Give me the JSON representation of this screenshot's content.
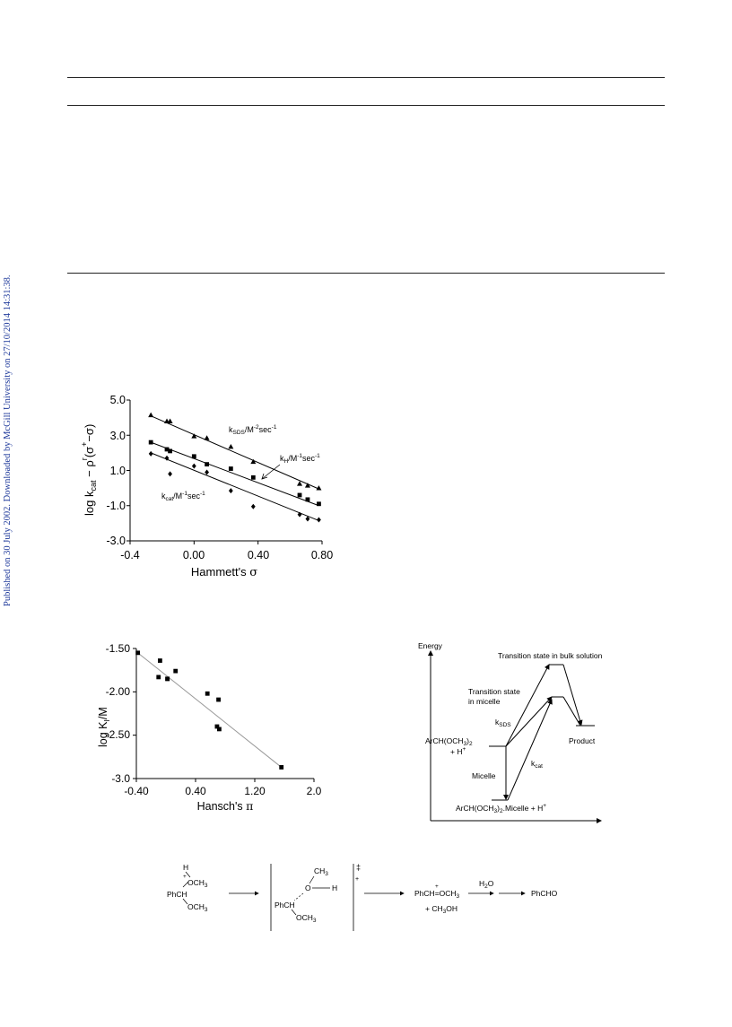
{
  "side_note": "Published on 30 July 2002. Downloaded by McGill University on 27/10/2014 14:31:38.",
  "fig_hammett": {
    "y_ticks": [
      "5.0",
      "3.0",
      "1.0",
      "-1.0",
      "-3.0"
    ],
    "x_ticks": [
      "-0.4",
      "0.00",
      "0.40",
      "0.80"
    ],
    "xlabel_main": "Hammett's",
    "xlabel_symbol": "σ",
    "ylabel_log": "log k",
    "ylabel_cat": "cat",
    "ylabel_rest": "− ρ",
    "ylabel_r": "r",
    "ylabel_sigma_expr": "(σ",
    "ylabel_plus": "+",
    "ylabel_end": "−σ)",
    "label_ksds_k": "k",
    "label_ksds_sub": "SDS",
    "label_ksds_unit": "/M",
    "label_ksds_exp": "-2",
    "label_ksds_sec": "sec",
    "label_ksds_exp2": "-1",
    "label_kh_k": "k",
    "label_kh_sub": "H",
    "label_kh_unit": "/M",
    "label_kh_exp": "-1",
    "label_kh_sec": "sec",
    "label_kh_exp2": "-1",
    "label_kcat_k": "k",
    "label_kcat_sub": "cat",
    "label_kcat_unit": "/M",
    "label_kcat_exp": "-1",
    "label_kcat_sec": "sec",
    "label_kcat_exp2": "-1"
  },
  "fig_hansch": {
    "y_ticks": [
      "-1.50",
      "-2.00",
      "-2.50",
      "-3.0"
    ],
    "x_ticks": [
      "-0.40",
      "0.40",
      "1.20",
      "2.0"
    ],
    "xlabel_main": "Hansch's",
    "xlabel_symbol": "π",
    "ylabel": "log K",
    "ylabel_sub": "I",
    "ylabel_end": "/M"
  },
  "fig_energy": {
    "axis_label": "Energy",
    "ts_bulk": "Transition state in bulk solution",
    "ts_micelle_1": "Transition state",
    "ts_micelle_2": "in micelle",
    "ksds_k": "k",
    "ksds_sub": "SDS",
    "reactant": "ArCH(OCH",
    "reactant_sub": "3",
    "reactant_end": ")",
    "reactant_sub2": "2",
    "reactant_plus": "+ H",
    "reactant_plus_sup": "+",
    "product": "Product",
    "kcat_k": "k",
    "kcat_sub": "cat",
    "micelle": "Micelle",
    "complex": "ArCH(OCH",
    "complex_sub": "3",
    "complex_end": ")",
    "complex_sub2": "2",
    "complex_rest": ".Micelle   + H",
    "complex_sup": "+"
  },
  "scheme": {
    "h": "H",
    "och3_top": "OCH",
    "och3_sub": "3",
    "phch": "PhCH",
    "och3_bottom": "OCH",
    "plus": "+",
    "ch3": "CH",
    "ch3_sub": "3",
    "o": "O",
    "h2": "H",
    "phch2": "PhCH",
    "och3_ts": "OCH",
    "dagger": "‡",
    "ts_plus": "+",
    "ox_carbenium": "PhCH",
    "ox_eq": "=",
    "ox_och3": "OCH",
    "ox_plus": "+",
    "ch3oh": "+ CH",
    "ch3oh_sub": "3",
    "ch3oh_end": "OH",
    "h2o": "H",
    "h2o_sub": "2",
    "h2o_end": "O",
    "phcho": "PhCHO"
  },
  "chart_data": [
    {
      "type": "scatter",
      "xlabel": "Hammett's σ",
      "ylabel": "log kcat − ρr(σ+ − σ)",
      "xlim": [
        -0.4,
        0.8
      ],
      "ylim": [
        -3.0,
        5.0
      ],
      "series": [
        {
          "name": "kSDS/M-2sec-1",
          "marker": "triangle",
          "x": [
            -0.27,
            -0.17,
            -0.15,
            0.0,
            0.08,
            0.23,
            0.37,
            0.66,
            0.71,
            0.78
          ],
          "y": [
            4.15,
            3.8,
            3.8,
            2.95,
            2.85,
            2.35,
            1.5,
            0.25,
            0.15,
            0.0
          ],
          "fit": [
            [
              -0.27,
              4.1
            ],
            [
              0.78,
              -0.05
            ]
          ]
        },
        {
          "name": "kH/M-1sec-1",
          "marker": "square",
          "x": [
            -0.27,
            -0.17,
            -0.15,
            0.0,
            0.08,
            0.23,
            0.37,
            0.66,
            0.71,
            0.78
          ],
          "y": [
            2.6,
            2.2,
            2.1,
            1.8,
            1.35,
            1.1,
            0.6,
            -0.4,
            -0.65,
            -0.9
          ],
          "fit": [
            [
              -0.27,
              2.6
            ],
            [
              0.78,
              -1.0
            ]
          ]
        },
        {
          "name": "kcat/M-1sec-1",
          "marker": "diamond",
          "x": [
            -0.27,
            -0.17,
            -0.15,
            0.0,
            0.08,
            0.23,
            0.37,
            0.66,
            0.71,
            0.78
          ],
          "y": [
            1.95,
            1.7,
            0.8,
            1.25,
            0.9,
            -0.15,
            -1.05,
            -1.5,
            -1.75,
            -1.8
          ],
          "fit": [
            [
              -0.27,
              2.0
            ],
            [
              0.78,
              -1.85
            ]
          ]
        }
      ]
    },
    {
      "type": "scatter",
      "xlabel": "Hansch's π",
      "ylabel": "log KI/M",
      "xlim": [
        -0.4,
        2.0
      ],
      "ylim": [
        -3.0,
        -1.5
      ],
      "series": [
        {
          "name": "",
          "marker": "square",
          "x": [
            -0.38,
            -0.08,
            -0.1,
            0.02,
            0.02,
            0.13,
            0.56,
            0.71,
            0.69,
            0.72,
            1.56
          ],
          "y": [
            -1.55,
            -1.64,
            -1.83,
            -1.85,
            -1.85,
            -1.76,
            -2.02,
            -2.09,
            -2.4,
            -2.43,
            -2.87
          ],
          "fit": [
            [
              -0.38,
              -1.55
            ],
            [
              1.56,
              -2.87
            ]
          ]
        }
      ]
    }
  ]
}
